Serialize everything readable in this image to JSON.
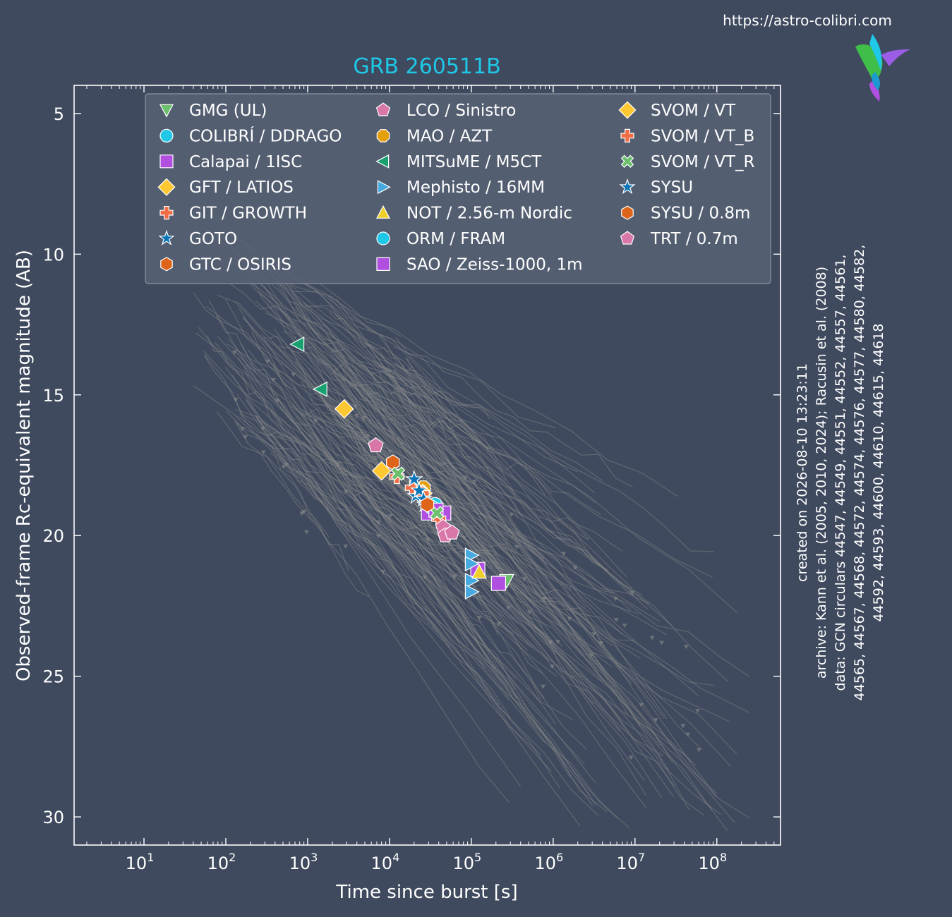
{
  "site_url": "https://astro-colibri.com",
  "logo_icon": "hummingbird-logo-icon",
  "colors": {
    "background": "#3f4a5e",
    "title": "#1ec8e6",
    "archive_lines": "#8c8c8c",
    "legend_bg": "#566073",
    "axis": "#ffffff"
  },
  "chart_data": {
    "type": "scatter",
    "title": "GRB 260511B",
    "xlabel": "Time since burst [s]",
    "ylabel": "Observed-frame Rc-equivalent magnitude (AB)",
    "xscale": "log",
    "xlim": [
      1.4,
      600000000
    ],
    "ylim": [
      31.0,
      4.0
    ],
    "y_inverted": true,
    "grid": false,
    "legend_position": "top",
    "x_ticks": [
      10,
      100,
      1000,
      10000,
      100000,
      1000000,
      10000000,
      100000000
    ],
    "x_tick_labels": [
      {
        "base": "10",
        "exp": "1"
      },
      {
        "base": "10",
        "exp": "2"
      },
      {
        "base": "10",
        "exp": "3"
      },
      {
        "base": "10",
        "exp": "4"
      },
      {
        "base": "10",
        "exp": "5"
      },
      {
        "base": "10",
        "exp": "6"
      },
      {
        "base": "10",
        "exp": "7"
      },
      {
        "base": "10",
        "exp": "8"
      }
    ],
    "y_ticks": [
      5,
      10,
      15,
      20,
      25,
      30
    ],
    "y_tick_labels": [
      "5",
      "10",
      "15",
      "20",
      "25",
      "30"
    ],
    "side_notes": [
      "created on 2026-08-10 13:23:11",
      "archive: Kann et al. (2005, 2010, 2024); Racusin et al. (2008)",
      "data: GCN circulars 44547, 44549, 44551, 44552, 44557, 44561,",
      "44565, 44567, 44568, 44572, 44574, 44576, 44577, 44580, 44582,",
      "44592, 44593, 44600, 44610, 44615, 44618"
    ],
    "series": [
      {
        "name": "GMG (UL)",
        "marker": "triangle-down",
        "color": "#6cbf6c",
        "points": [
          [
            270000,
            21.6
          ]
        ]
      },
      {
        "name": "COLIBRÍ / DDRAGO",
        "marker": "circle",
        "color": "#1ec8e6",
        "points": [
          [
            36000,
            18.9
          ]
        ]
      },
      {
        "name": "Calapai / 1ISC",
        "marker": "square",
        "color": "#b04fe0",
        "points": [
          [
            30000,
            19.2
          ],
          [
            46000,
            19.2
          ],
          [
            120000,
            21.2
          ],
          [
            215000,
            21.7
          ]
        ]
      },
      {
        "name": "GFT / LATIOS",
        "marker": "diamond",
        "color": "#ffc832",
        "points": [
          [
            2800,
            15.5
          ],
          [
            8000,
            17.7
          ]
        ]
      },
      {
        "name": "GIT / GROWTH",
        "marker": "plus",
        "color": "#f06e46",
        "points": [
          [
            19000,
            18.3
          ],
          [
            40000,
            19.4
          ]
        ]
      },
      {
        "name": "GOTO",
        "marker": "star",
        "color": "#0a74b8",
        "points": [
          [
            21000,
            18.6
          ],
          [
            27000,
            18.9
          ]
        ]
      },
      {
        "name": "GTC / OSIRIS",
        "marker": "hexagon",
        "color": "#dd6418",
        "points": [
          [
            11000,
            17.4
          ]
        ]
      },
      {
        "name": "LCO / Sinistro",
        "marker": "pentagon",
        "color": "#d877a8",
        "points": [
          [
            6800,
            16.8
          ],
          [
            45000,
            19.7
          ]
        ]
      },
      {
        "name": "MAO / AZT",
        "marker": "octagon",
        "color": "#e4a00c",
        "points": [
          [
            26000,
            18.3
          ]
        ]
      },
      {
        "name": "MITSuME / M5CT",
        "marker": "triangle-left",
        "color": "#18a070",
        "points": [
          [
            760,
            13.2
          ],
          [
            1450,
            14.8
          ]
        ]
      },
      {
        "name": "Mephisto / 16MM",
        "marker": "triangle-right",
        "color": "#46aae0",
        "points": [
          [
            100000,
            20.7
          ],
          [
            100000,
            21.0
          ],
          [
            100000,
            21.6
          ],
          [
            100000,
            22.0
          ]
        ]
      },
      {
        "name": "NOT / 2.56-m Nordic",
        "marker": "triangle-up",
        "color": "#f0d028",
        "points": [
          [
            125000,
            21.3
          ]
        ]
      },
      {
        "name": "ORM / FRAM",
        "marker": "circle",
        "color": "#1ec8e6",
        "points": [
          [
            33000,
            19.0
          ]
        ]
      },
      {
        "name": "SAO / Zeiss-1000, 1m",
        "marker": "square",
        "color": "#b04fe0",
        "points": [
          [
            37000,
            19.1
          ]
        ]
      },
      {
        "name": "SVOM / VT",
        "marker": "diamond",
        "color": "#ffc832",
        "points": [
          [
            25500,
            18.5
          ]
        ]
      },
      {
        "name": "SVOM / VT_B",
        "marker": "plus",
        "color": "#f06e46",
        "points": [
          [
            12300,
            17.9
          ],
          [
            25000,
            18.5
          ]
        ]
      },
      {
        "name": "SVOM / VT_R",
        "marker": "x",
        "color": "#6cbf6c",
        "points": [
          [
            12700,
            17.8
          ],
          [
            38000,
            19.2
          ]
        ]
      },
      {
        "name": "SYSU",
        "marker": "star",
        "color": "#0a74b8",
        "points": [
          [
            20000,
            18.0
          ],
          [
            23000,
            18.4
          ],
          [
            26000,
            18.7
          ]
        ]
      },
      {
        "name": "SYSU / 0.8m",
        "marker": "hexagon",
        "color": "#dd6418",
        "points": [
          [
            29000,
            18.9
          ]
        ]
      },
      {
        "name": "TRT / 0.7m",
        "marker": "pentagon",
        "color": "#d877a8",
        "points": [
          [
            48000,
            20.0
          ],
          [
            58000,
            19.9
          ]
        ]
      }
    ]
  }
}
